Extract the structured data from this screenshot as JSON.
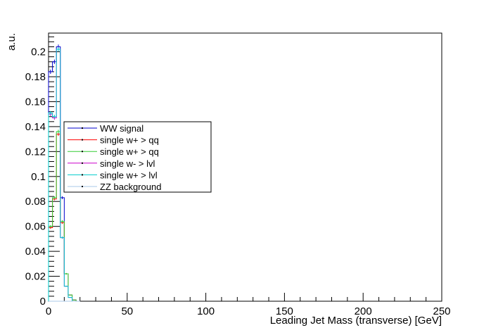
{
  "chart_data": {
    "type": "histogram",
    "xlabel": "Leading Jet Mass (transverse) [GeV]",
    "ylabel": "a.u.",
    "xlim": [
      0,
      250
    ],
    "ylim": [
      0,
      0.215
    ],
    "x_ticks": [
      0,
      50,
      100,
      150,
      200,
      250
    ],
    "y_ticks": [
      0,
      0.02,
      0.04,
      0.06,
      0.08,
      0.1,
      0.12,
      0.14,
      0.16,
      0.18,
      0.2
    ],
    "x_tick_labels": [
      "0",
      "50",
      "100",
      "150",
      "200",
      "250"
    ],
    "y_tick_labels": [
      "0",
      "0.02",
      "0.04",
      "0.06",
      "0.08",
      "0.1",
      "0.12",
      "0.14",
      "0.16",
      "0.18",
      "0.2"
    ],
    "bin_width": 2.5,
    "legend_position": "center-left",
    "series": [
      {
        "name": "WW signal",
        "color": "#0000cc",
        "values": [
          0.184,
          0.192,
          0.204,
          0.083,
          0.022,
          0.005,
          0.001,
          0.0
        ]
      },
      {
        "name": "single w+ > qq",
        "color": "#ff0000",
        "values": [
          0.059,
          0.082,
          0.134,
          0.063,
          0.022,
          0.005,
          0.001,
          0.0
        ]
      },
      {
        "name": "single w+ > qq",
        "color": "#33cc33",
        "values": [
          0.06,
          0.083,
          0.136,
          0.064,
          0.022,
          0.005,
          0.001,
          0.0
        ]
      },
      {
        "name": "single w- > lvl",
        "color": "#cc00cc",
        "values": [
          0.15,
          0.147,
          0.202,
          0.051,
          0.012,
          0.003,
          0.0,
          0.0
        ]
      },
      {
        "name": "single w+ > lvl",
        "color": "#00cccc",
        "values": [
          0.151,
          0.148,
          0.202,
          0.051,
          0.012,
          0.003,
          0.0,
          0.0
        ]
      },
      {
        "name": "ZZ background",
        "color": "#a8c8e8",
        "values": [
          0.0,
          0.0,
          0.0,
          0.0,
          0.0,
          0.0,
          0.0,
          0.0
        ]
      }
    ]
  }
}
